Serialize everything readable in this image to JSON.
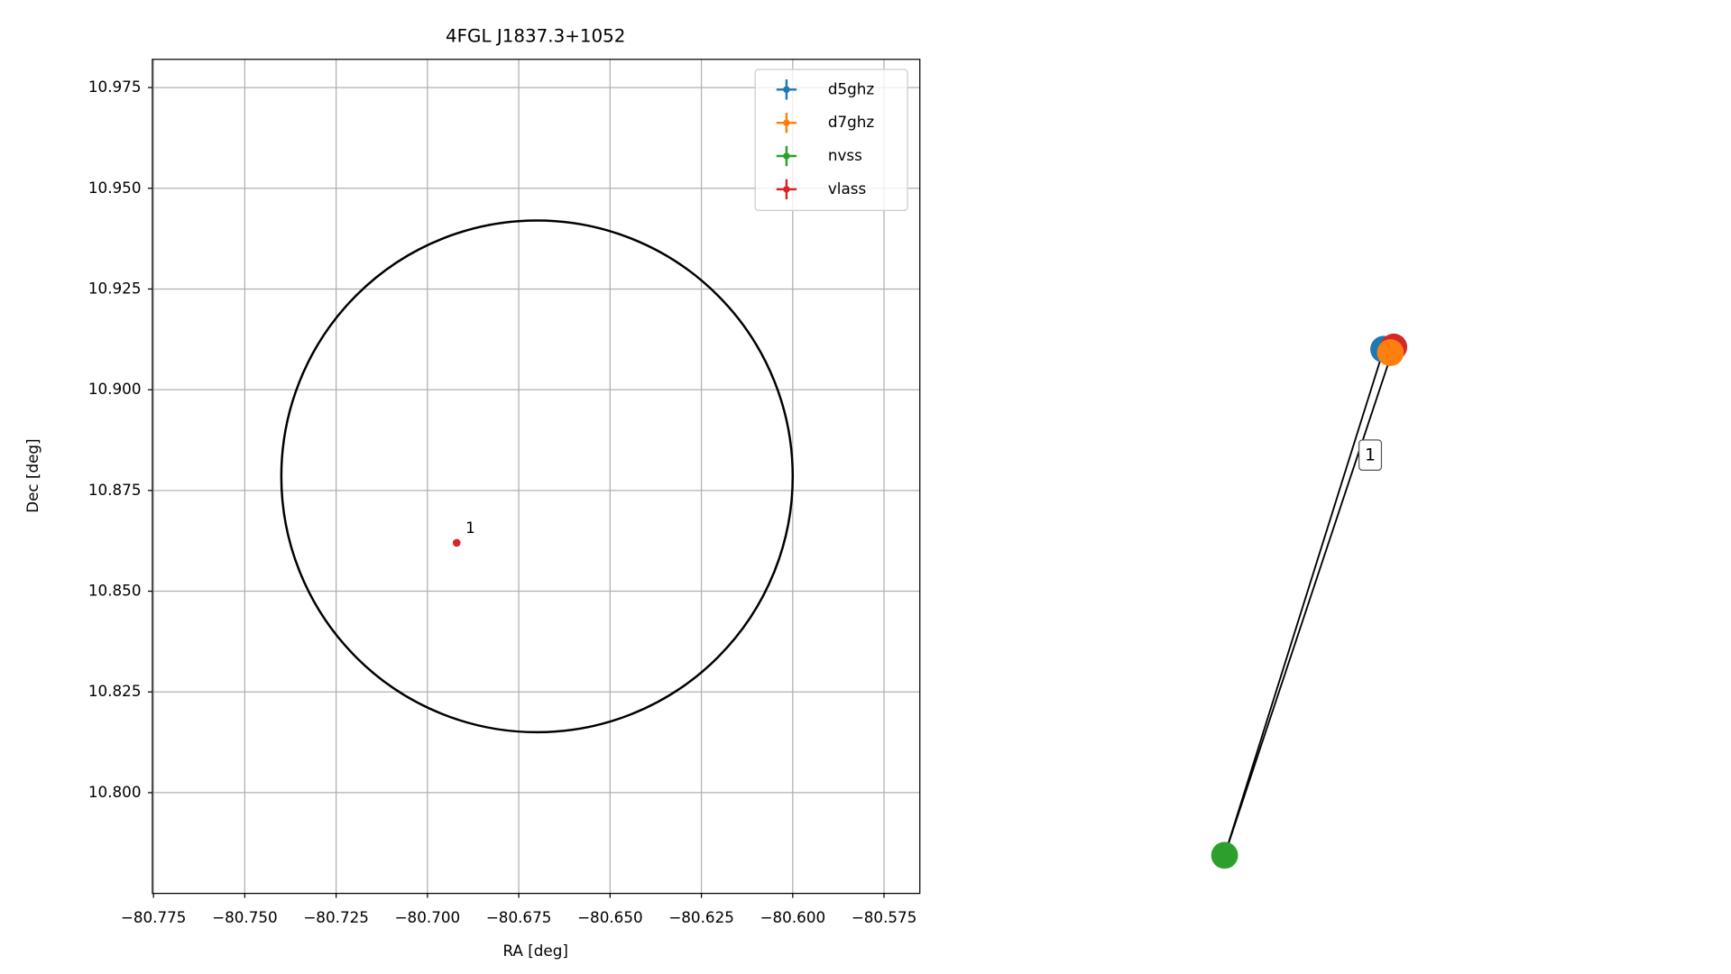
{
  "chart_data": [
    {
      "type": "scatter",
      "title": "4FGL J1837.3+1052",
      "xlabel": "RA [deg]",
      "ylabel": "Dec [deg]",
      "xlim": [
        -80.7753,
        -80.5652
      ],
      "ylim": [
        10.775,
        10.982
      ],
      "xticks": [
        {
          "value": -80.775,
          "label": "−80.775"
        },
        {
          "value": -80.75,
          "label": "−80.750"
        },
        {
          "value": -80.725,
          "label": "−80.725"
        },
        {
          "value": -80.7,
          "label": "−80.700"
        },
        {
          "value": -80.675,
          "label": "−80.675"
        },
        {
          "value": -80.65,
          "label": "−80.650"
        },
        {
          "value": -80.625,
          "label": "−80.625"
        },
        {
          "value": -80.6,
          "label": "−80.600"
        },
        {
          "value": -80.575,
          "label": "−80.575"
        }
      ],
      "yticks": [
        {
          "value": 10.8,
          "label": "10.800"
        },
        10.825,
        {
          "value": 10.85,
          "label": "10.850"
        },
        10.875,
        {
          "value": 10.9,
          "label": "10.900"
        },
        10.925,
        {
          "value": 10.95,
          "label": "10.950"
        },
        10.975
      ],
      "grid": true,
      "legend": "upper right",
      "series": [
        {
          "name": "d5ghz",
          "color": "#1f77b4"
        },
        {
          "name": "d7ghz",
          "color": "#ff7f0e"
        },
        {
          "name": "nvss",
          "color": "#2ca02c"
        },
        {
          "name": "vlass",
          "color": "#d62728"
        }
      ],
      "ellipse": {
        "ra": -80.67,
        "dec": 10.8785,
        "width": 0.14,
        "height": 0.127,
        "color": "#000000"
      },
      "points": {
        "x": [
          -80.692
        ],
        "y": [
          10.862
        ],
        "labels": [
          "1"
        ],
        "color": "#d62728"
      }
    },
    {
      "type": "graph",
      "nodes": [
        {
          "color": "#1f77b4"
        },
        {
          "color": "#d62728"
        },
        {
          "color": "#ff7f0e"
        },
        {
          "color": "#2ca02c"
        }
      ],
      "edges": [
        [
          3,
          0
        ],
        [
          3,
          1
        ]
      ],
      "edge_label": "1"
    }
  ]
}
